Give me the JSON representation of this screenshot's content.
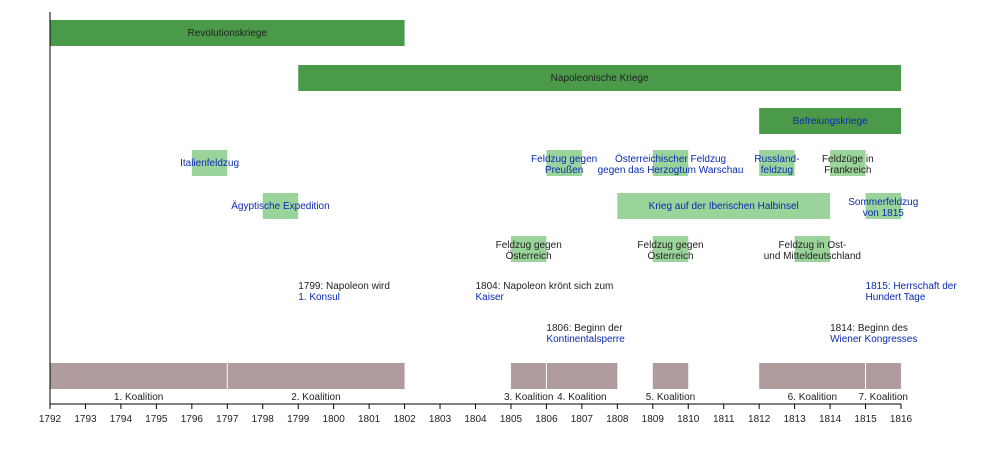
{
  "chart_data": {
    "type": "timeline",
    "title": "",
    "xlabel": "",
    "ylabel": "",
    "xlim": [
      1792,
      1816
    ],
    "ticks": [
      1792,
      1793,
      1794,
      1795,
      1796,
      1797,
      1798,
      1799,
      1800,
      1801,
      1802,
      1803,
      1804,
      1805,
      1806,
      1807,
      1808,
      1809,
      1810,
      1811,
      1812,
      1813,
      1814,
      1815,
      1816
    ],
    "colors": {
      "war": "#4a9a4a",
      "campaign": "#9bd49b",
      "coalition": "#b09c9c",
      "link": "#0a2ab2",
      "text": "#222222"
    },
    "wars": [
      {
        "name": "Revolutionskriege",
        "start": 1792,
        "end": 1802
      },
      {
        "name": "Napoleonische Kriege",
        "start": 1799,
        "end": 1816
      },
      {
        "name": "Befreiungskriege",
        "start": 1812,
        "end": 1816,
        "link": true
      }
    ],
    "campaigns": [
      {
        "start": 1796,
        "end": 1797,
        "lane": 0,
        "labelYear": 1796.5,
        "lines": [
          "Italienfeldzug"
        ],
        "link": true
      },
      {
        "start": 1806,
        "end": 1807,
        "lane": 0,
        "labelYear": 1806.5,
        "lines": [
          "Feldzug gegen",
          "Preußen"
        ],
        "link": true
      },
      {
        "start": 1809,
        "end": 1810,
        "lane": 0,
        "labelYear": 1809.5,
        "lines": [
          "Österreichischer Feldzug",
          "gegen das Herzogtum Warschau"
        ],
        "link": true
      },
      {
        "start": 1812,
        "end": 1813,
        "lane": 0,
        "labelYear": 1812.5,
        "lines": [
          "Russland-",
          "feldzug"
        ],
        "link": true
      },
      {
        "start": 1814,
        "end": 1815,
        "lane": 0,
        "labelYear": 1814.5,
        "lines": [
          "Feldzüge in",
          "Frankreich"
        ],
        "link": false
      },
      {
        "start": 1798,
        "end": 1799,
        "lane": 1,
        "labelYear": 1798.5,
        "lines": [
          "Ägyptische Expedition"
        ],
        "link": true
      },
      {
        "start": 1808,
        "end": 1814,
        "lane": 1,
        "labelYear": 1811,
        "lines": [
          "Krieg auf der Iberischen Halbinsel"
        ],
        "link": true
      },
      {
        "start": 1815,
        "end": 1816,
        "lane": 1,
        "labelYear": 1815.5,
        "lines": [
          "Sommerfeldzug",
          "von 1815"
        ],
        "link": true
      },
      {
        "start": 1805,
        "end": 1806,
        "lane": 2,
        "labelYear": 1805.5,
        "lines": [
          "Feldzug gegen",
          "Österreich"
        ],
        "link": false
      },
      {
        "start": 1809,
        "end": 1810,
        "lane": 2,
        "labelYear": 1809.5,
        "lines": [
          "Feldzug gegen",
          "Österreich"
        ],
        "link": false
      },
      {
        "start": 1813,
        "end": 1814,
        "lane": 2,
        "labelYear": 1813.5,
        "lines": [
          "Feldzug in Ost-",
          "und Mitteldeutschland"
        ],
        "link": false
      }
    ],
    "events": [
      {
        "year": 1799,
        "lane": 0,
        "lines": [
          {
            "text": "1799: Napoleon wird",
            "link": false
          },
          {
            "text": "1. Konsul",
            "link": true
          }
        ]
      },
      {
        "year": 1804,
        "lane": 0,
        "lines": [
          {
            "text": "1804: Napoleon krönt sich zum",
            "link": false
          },
          {
            "text": "Kaiser",
            "link": true
          }
        ]
      },
      {
        "year": 1815,
        "lane": 0,
        "lines": [
          {
            "text": "1815: Herrschaft der",
            "link": true
          },
          {
            "text": "Hundert Tage",
            "link": true
          }
        ]
      },
      {
        "year": 1806,
        "lane": 1,
        "lines": [
          {
            "text": "1806: Beginn der",
            "link": false
          },
          {
            "text": "Kontinentalsperre",
            "link": true
          }
        ]
      },
      {
        "year": 1814,
        "lane": 1,
        "lines": [
          {
            "text": "1814: Beginn des",
            "link": false
          },
          {
            "text": "Wiener Kongresses",
            "link": true
          }
        ]
      }
    ],
    "coalitions": [
      {
        "name": "1. Koalition",
        "start": 1792,
        "end": 1797
      },
      {
        "name": "2. Koalition",
        "start": 1797,
        "end": 1802
      },
      {
        "name": "3. Koalition",
        "start": 1805,
        "end": 1806
      },
      {
        "name": "4. Koalition",
        "start": 1806,
        "end": 1808
      },
      {
        "name": "5. Koalition",
        "start": 1809,
        "end": 1810
      },
      {
        "name": "6. Koalition",
        "start": 1812,
        "end": 1815
      },
      {
        "name": "7. Koalition",
        "start": 1815,
        "end": 1816
      }
    ]
  }
}
